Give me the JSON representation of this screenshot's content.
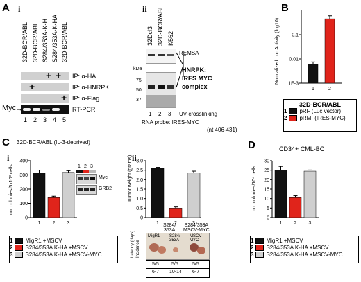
{
  "panels": {
    "A": "A",
    "B": "B",
    "C": "C",
    "D": "D",
    "Ai": "i",
    "Aii": "ii",
    "Ci": "i",
    "Cii": "ii"
  },
  "panelA_i": {
    "lanes": [
      "32D-BCR/ABL",
      "32D-BCR/ABL",
      "S284/353A-K-H",
      "S284/353A-K-HA",
      "32D-BCR/ABL"
    ],
    "ip_labels": [
      "IP: α-HA",
      "IP: α-HNRPK",
      "IP: α-Flag"
    ],
    "rtpcr": "RT-PCR",
    "myc": "Myc",
    "lane_numbers": [
      "1",
      "2",
      "3",
      "4",
      "5"
    ],
    "plus": "+"
  },
  "panelA_ii": {
    "lanes": [
      "32Dcl3",
      "32D-BCR/ABL",
      "K562"
    ],
    "remsa": "REMSA",
    "kda": "kDa",
    "markers": [
      "75",
      "50",
      "37"
    ],
    "complex": [
      "HNRPK:",
      "IRES MYC",
      "complex"
    ],
    "uv": "UV crosslinking",
    "lane_numbers": [
      "1",
      "2",
      "3"
    ],
    "probe": "RNA probe: IRES-MYC",
    "probe_nt": "(nt 406-431)"
  },
  "panelB": {
    "ylabel": "Normalized Luc Activity (log10)",
    "cell": "32D-BCR/ABL",
    "legend": [
      {
        "num": "1",
        "label": "pRF (Luc vector)",
        "color": "#111111"
      },
      {
        "num": "2",
        "label": "pRMF(IRES-MYC)",
        "color": "#e0241b"
      }
    ]
  },
  "panelC_i": {
    "title": "32D-BCR/ABL (IL-3-deprived)",
    "ylabel": "no. colonies/5x10³ cells",
    "blot": [
      "Myc",
      "GRB2"
    ],
    "blot_numbers": [
      "1",
      "2",
      "3"
    ],
    "legend": [
      {
        "num": "1",
        "label": "MigR1 +MSCV",
        "color": "#111111"
      },
      {
        "num": "2",
        "label": "S284/353A K-HA +MSCV",
        "color": "#e0241b"
      },
      {
        "num": "3",
        "label": "S284/353A K-HA +MSCV-MYC",
        "color": "#cfcfcf"
      }
    ]
  },
  "panelC_ii": {
    "ylabel": "Tumor weight (grams)",
    "xlabels": [
      "1",
      "2",
      "3"
    ],
    "xsub": [
      "",
      "S284/\n353A",
      "S284/353A\nMSCV-MYC"
    ],
    "photo_labels": [
      "MigR1",
      "S284/\n353A",
      "MSCV-\nMYC"
    ],
    "incidence_label": "Incidence",
    "latency_label": "Latency (days)",
    "incidence": [
      "5/5",
      "5/5",
      "5/5"
    ],
    "latency": [
      "6-7",
      "10-14",
      "6-7"
    ]
  },
  "panelD": {
    "title": "CD34+ CML-BC",
    "ylabel": "no. colonies/10⁴ cells",
    "legend": [
      {
        "num": "1",
        "label": "MigR1 +MSCV",
        "color": "#111111"
      },
      {
        "num": "2",
        "label": "S284/353A K-HA +MSCV",
        "color": "#e0241b"
      },
      {
        "num": "3",
        "label": "S284/353A K-HA +MSCV-MYC",
        "color": "#cfcfcf"
      }
    ]
  },
  "chart_data": [
    {
      "type": "bar",
      "panel": "B",
      "categories": [
        "1",
        "2"
      ],
      "values": [
        0.006,
        0.45
      ],
      "errors": [
        0.0015,
        0.15
      ],
      "yscale": "log",
      "ylim": [
        0.001,
        1
      ],
      "yticks": [
        "1E-3",
        "0.01",
        "0.1"
      ],
      "colors": [
        "#111111",
        "#e0241b"
      ],
      "ylabel": "Normalized Luc Activity (log10)"
    },
    {
      "type": "bar",
      "panel": "C-i",
      "categories": [
        "1",
        "2",
        "3"
      ],
      "values": [
        312,
        140,
        318
      ],
      "errors": [
        22,
        10,
        12
      ],
      "ylim": [
        0,
        400
      ],
      "yticks": [
        "0",
        "100",
        "200",
        "300",
        "400"
      ],
      "colors": [
        "#111111",
        "#e0241b",
        "#cfcfcf"
      ],
      "ylabel": "no. colonies/5x10³ cells"
    },
    {
      "type": "bar",
      "panel": "C-ii",
      "categories": [
        "1",
        "2",
        "3"
      ],
      "values": [
        2.6,
        0.5,
        2.35
      ],
      "errors": [
        0.05,
        0.06,
        0.1
      ],
      "ylim": [
        0,
        3
      ],
      "yticks": [
        "0",
        "0.5",
        "1.0",
        "1.5",
        "2.0",
        "2.5",
        "3.0"
      ],
      "colors": [
        "#111111",
        "#e0241b",
        "#cfcfcf"
      ],
      "ylabel": "Tumor weight (grams)"
    },
    {
      "type": "bar",
      "panel": "D",
      "categories": [
        "1",
        "2",
        "3"
      ],
      "values": [
        25,
        10.5,
        24.5
      ],
      "errors": [
        2,
        1,
        0.6
      ],
      "ylim": [
        0,
        30
      ],
      "yticks": [
        "0",
        "5",
        "10",
        "15",
        "20",
        "25",
        "30"
      ],
      "colors": [
        "#111111",
        "#e0241b",
        "#cfcfcf"
      ],
      "ylabel": "no. colonies/10⁴ cells"
    }
  ]
}
